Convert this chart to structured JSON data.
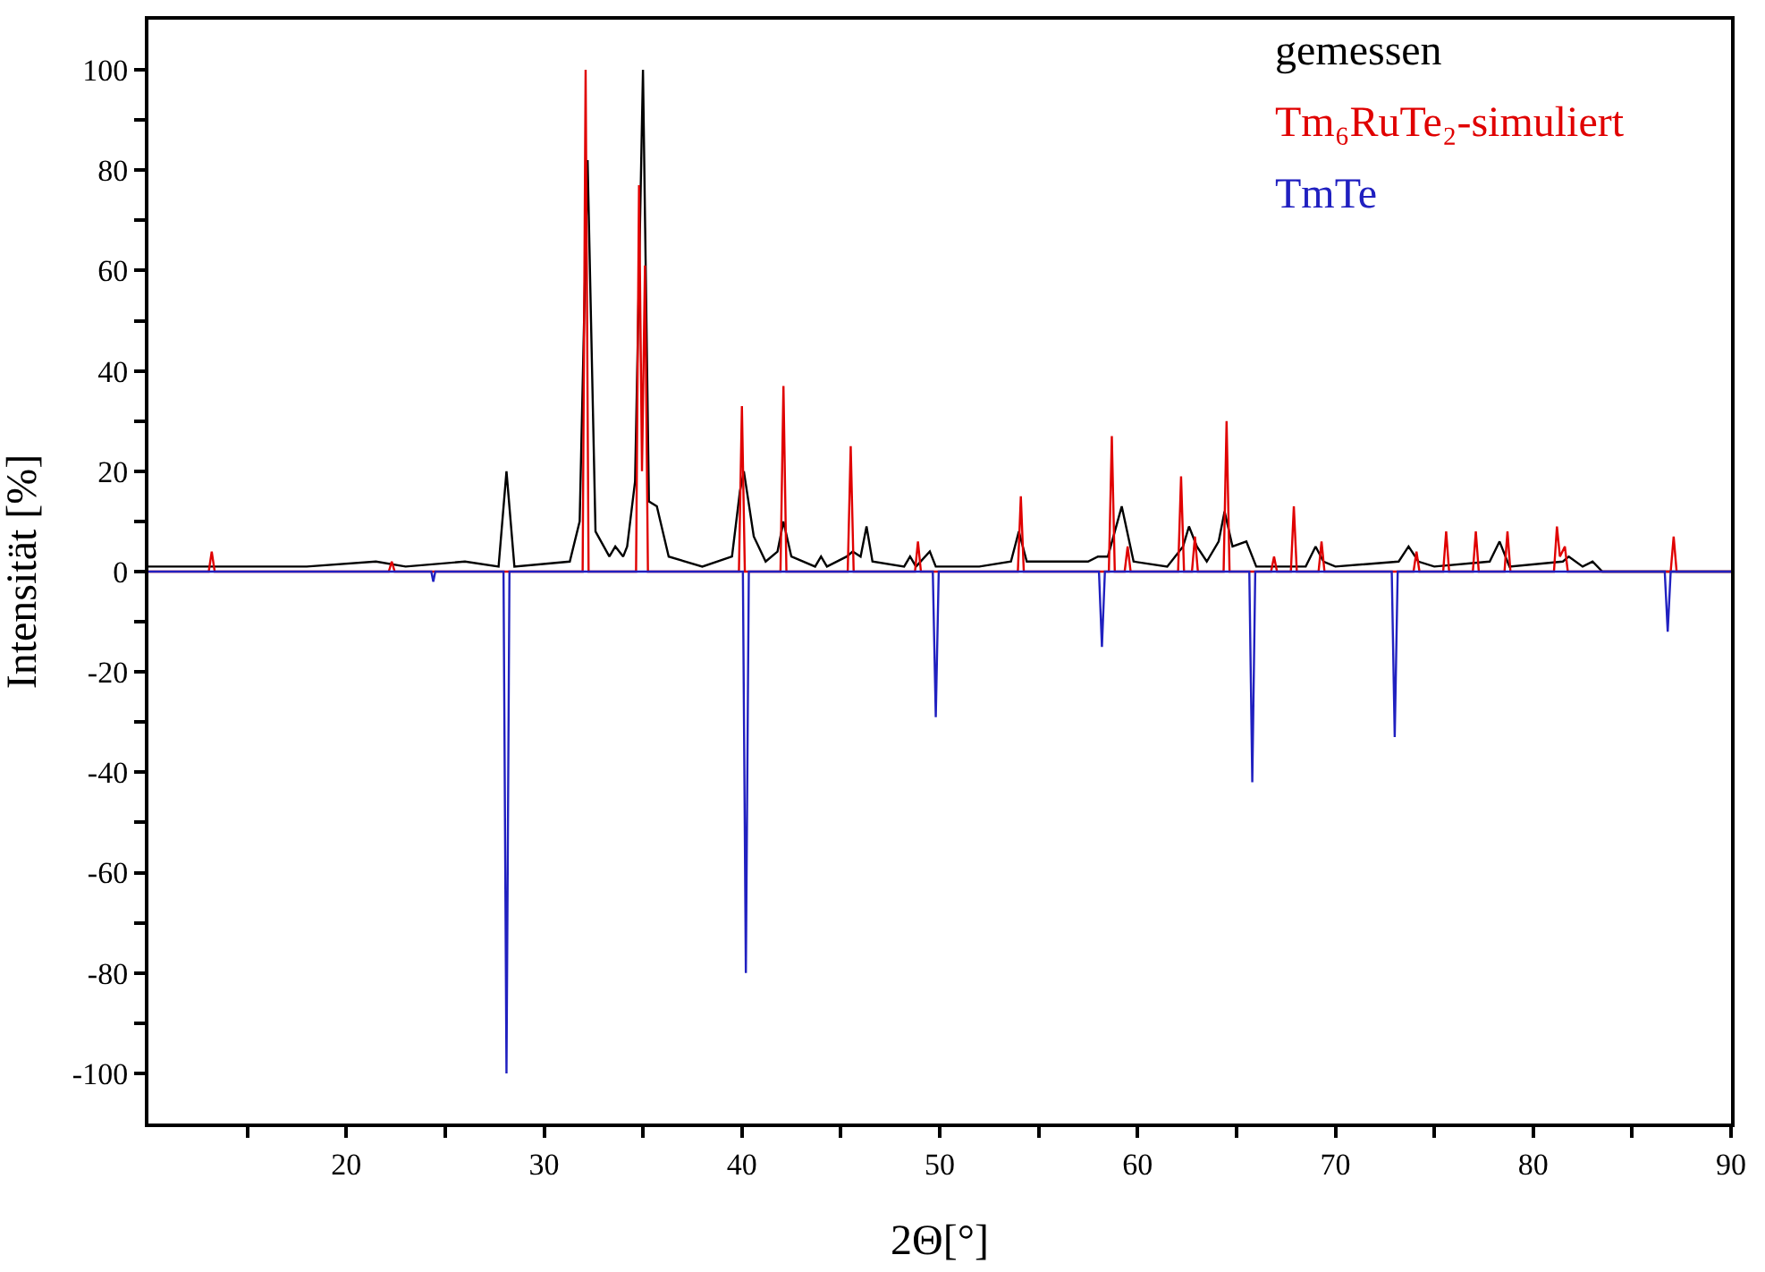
{
  "chart_data": {
    "type": "line",
    "xlabel": "2Θ[°]",
    "ylabel": "Intensität [%]",
    "xlim": [
      10,
      90
    ],
    "ylim": [
      -110,
      110
    ],
    "xticks": [
      {
        "value": 15,
        "label": null
      },
      20,
      {
        "value": 25,
        "label": null
      },
      30,
      {
        "value": 35,
        "label": null
      },
      40,
      {
        "value": 45,
        "label": null
      },
      50,
      {
        "value": 55,
        "label": null
      },
      60,
      {
        "value": 65,
        "label": null
      },
      70,
      {
        "value": 75,
        "label": null
      },
      80,
      {
        "value": 85,
        "label": null
      },
      90
    ],
    "yticks": [
      -100,
      {
        "value": -90,
        "label": null
      },
      -80,
      {
        "value": -70,
        "label": null
      },
      -60,
      {
        "value": -50,
        "label": null
      },
      -40,
      {
        "value": -30,
        "label": null
      },
      -20,
      {
        "value": -10,
        "label": null
      },
      0,
      {
        "value": 10,
        "label": null
      },
      20,
      {
        "value": 30,
        "label": null
      },
      40,
      {
        "value": 50,
        "label": null
      },
      60,
      {
        "value": 70,
        "label": null
      },
      80,
      {
        "value": 90,
        "label": null
      },
      100
    ],
    "legend": "top right",
    "marker": "none",
    "line_style": "solid",
    "series": [
      {
        "name": "gemessen",
        "color": "#000000",
        "x": [
          10,
          18,
          21.5,
          23,
          26,
          27.7,
          28.1,
          28.5,
          31.3,
          31.8,
          32.2,
          32.6,
          33.3,
          33.6,
          34.0,
          34.2,
          34.6,
          35.0,
          35.3,
          35.7,
          36.3,
          38,
          39.5,
          39.9,
          40.1,
          40.6,
          41.2,
          41.8,
          42.1,
          42.5,
          43.7,
          44.0,
          44.3,
          45.3,
          45.6,
          46.0,
          46.3,
          46.6,
          48.2,
          48.5,
          48.8,
          49.5,
          49.8,
          52,
          53.6,
          54.0,
          54.4,
          57.5,
          58.0,
          58.5,
          59.2,
          59.8,
          61.5,
          62.3,
          62.6,
          63.0,
          63.5,
          64.1,
          64.4,
          64.8,
          65.5,
          66.0,
          68.5,
          69.0,
          69.4,
          70,
          73.2,
          73.7,
          74.2,
          75,
          77.8,
          78.3,
          78.8,
          81.5,
          81.8,
          82.5,
          83.0,
          83.5,
          90
        ],
        "values": [
          1,
          1,
          2,
          1,
          2,
          1,
          20,
          1,
          2,
          10,
          82,
          8,
          3,
          5,
          3,
          5,
          18,
          100,
          14,
          13,
          3,
          1,
          3,
          16,
          20,
          7,
          2,
          4,
          10,
          3,
          1,
          3,
          1,
          3,
          4,
          3,
          9,
          2,
          1,
          3,
          1,
          4,
          1,
          1,
          2,
          8,
          2,
          2,
          3,
          3,
          13,
          2,
          1,
          5,
          9,
          5,
          2,
          6,
          12,
          5,
          6,
          1,
          1,
          5,
          2,
          1,
          2,
          5,
          2,
          1,
          2,
          6,
          1,
          2,
          3,
          1,
          2,
          0,
          0
        ]
      },
      {
        "name": "Tm₆RuTe₂-simuliert",
        "color": "#e00000",
        "x": [
          10,
          13.05,
          13.2,
          13.35,
          22.15,
          22.3,
          22.45,
          31.95,
          32.1,
          32.25,
          34.65,
          34.8,
          34.95,
          35.1,
          35.25,
          39.85,
          40.0,
          40.15,
          41.95,
          42.1,
          42.25,
          45.35,
          45.5,
          45.65,
          48.75,
          48.9,
          49.05,
          53.95,
          54.1,
          54.25,
          58.55,
          58.7,
          58.85,
          59.35,
          59.5,
          59.65,
          62.05,
          62.2,
          62.35,
          62.75,
          62.9,
          63.05,
          64.35,
          64.5,
          64.65,
          66.75,
          66.9,
          67.05,
          67.75,
          67.9,
          68.05,
          69.15,
          69.3,
          69.45,
          73.95,
          74.1,
          74.25,
          75.45,
          75.6,
          75.75,
          76.95,
          77.1,
          77.25,
          78.55,
          78.7,
          78.85,
          81.05,
          81.2,
          81.35,
          81.6,
          81.75,
          86.95,
          87.1,
          87.25,
          90
        ],
        "values": [
          0,
          0,
          4,
          0,
          0,
          2,
          0,
          0,
          100,
          0,
          0,
          77,
          20,
          61,
          0,
          0,
          33,
          0,
          0,
          37,
          0,
          0,
          25,
          0,
          0,
          6,
          0,
          0,
          15,
          0,
          0,
          27,
          0,
          0,
          5,
          0,
          0,
          19,
          0,
          0,
          7,
          0,
          0,
          30,
          0,
          0,
          3,
          0,
          0,
          13,
          0,
          0,
          6,
          0,
          0,
          4,
          0,
          0,
          8,
          0,
          0,
          8,
          0,
          0,
          8,
          0,
          0,
          9,
          3,
          5,
          0,
          0,
          7,
          0,
          0
        ]
      },
      {
        "name": "TmTe",
        "color": "#2020c0",
        "x": [
          10,
          24.3,
          24.4,
          24.5,
          27.95,
          28.1,
          28.25,
          40.05,
          40.2,
          40.35,
          49.65,
          49.8,
          49.95,
          58.05,
          58.2,
          58.35,
          65.65,
          65.8,
          65.95,
          72.85,
          73.0,
          73.15,
          86.65,
          86.8,
          86.95,
          90
        ],
        "values": [
          0,
          0,
          -2,
          0,
          0,
          -100,
          0,
          0,
          -80,
          0,
          0,
          -29,
          0,
          0,
          -15,
          0,
          0,
          -42,
          0,
          0,
          -33,
          0,
          0,
          -12,
          0,
          0
        ]
      }
    ]
  }
}
